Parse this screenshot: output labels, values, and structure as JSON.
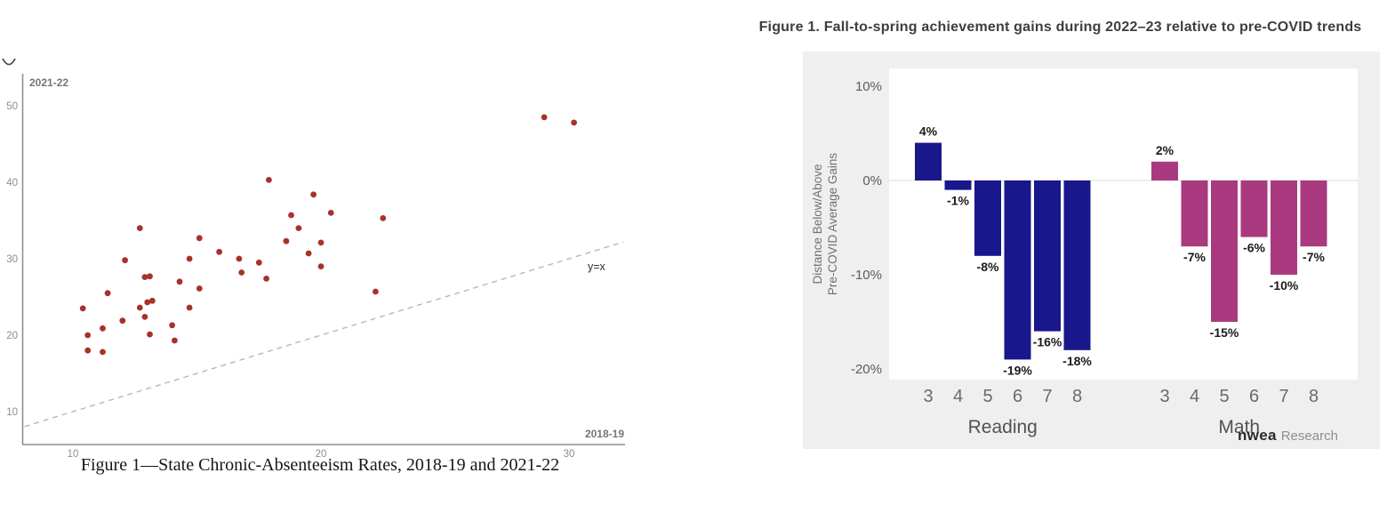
{
  "left_figure": {
    "caption": "Figure 1—State Chronic-Absenteeism Rates, 2018-19 and 2021-22"
  },
  "right_figure": {
    "title": "Figure 1. Fall-to-spring achievement gains during 2022–23 relative to pre-COVID trends",
    "logo_brand": "nwea",
    "logo_suffix": "Research"
  },
  "chart_data": [
    {
      "type": "scatter",
      "title": "Figure 1—State Chronic-Absenteeism Rates, 2018-19 and 2021-22",
      "xlabel": "2018-19",
      "ylabel": "2021-22",
      "x_ticks": [
        10,
        20,
        30
      ],
      "y_ticks": [
        10,
        20,
        30,
        40,
        50
      ],
      "xlim": [
        8,
        32.5
      ],
      "ylim": [
        7.5,
        53
      ],
      "grid": false,
      "legend": "none",
      "point_color": "#a83229",
      "reference_line": {
        "label": "y=x",
        "x1": 8.05,
        "y1": 8.05,
        "x2": 32.2,
        "y2": 32.2,
        "style": "dashed"
      },
      "points": [
        [
          10.4,
          23.5
        ],
        [
          10.6,
          20.0
        ],
        [
          10.6,
          18.0
        ],
        [
          11.2,
          20.9
        ],
        [
          11.2,
          17.8
        ],
        [
          11.4,
          25.5
        ],
        [
          12.0,
          21.9
        ],
        [
          12.1,
          29.8
        ],
        [
          12.7,
          34.0
        ],
        [
          12.7,
          23.6
        ],
        [
          12.9,
          27.6
        ],
        [
          12.9,
          22.4
        ],
        [
          13.0,
          24.3
        ],
        [
          13.1,
          27.7
        ],
        [
          13.1,
          20.1
        ],
        [
          13.2,
          24.5
        ],
        [
          14.0,
          21.3
        ],
        [
          14.1,
          19.3
        ],
        [
          14.3,
          27.0
        ],
        [
          14.7,
          30.0
        ],
        [
          14.7,
          23.6
        ],
        [
          15.1,
          32.7
        ],
        [
          15.1,
          26.1
        ],
        [
          15.9,
          30.9
        ],
        [
          16.7,
          30.0
        ],
        [
          16.8,
          28.2
        ],
        [
          17.5,
          29.5
        ],
        [
          17.8,
          27.4
        ],
        [
          17.9,
          40.3
        ],
        [
          18.6,
          32.3
        ],
        [
          18.8,
          35.7
        ],
        [
          19.1,
          34.0
        ],
        [
          19.5,
          30.7
        ],
        [
          19.7,
          38.4
        ],
        [
          20.0,
          32.1
        ],
        [
          20.0,
          29.0
        ],
        [
          20.4,
          36.0
        ],
        [
          22.2,
          25.7
        ],
        [
          22.5,
          35.3
        ],
        [
          29.0,
          48.5
        ],
        [
          30.2,
          47.8
        ]
      ]
    },
    {
      "type": "bar",
      "title": "Figure 1. Fall-to-spring achievement gains during 2022–23 relative to pre-COVID trends",
      "ylabel_lines": [
        "Distance Below/Above",
        "Pre-COVID Average Gains"
      ],
      "categories": [
        "3",
        "4",
        "5",
        "6",
        "7",
        "8"
      ],
      "series": [
        {
          "name": "Reading",
          "color": "#18178b",
          "values": [
            4,
            -1,
            -8,
            -19,
            -16,
            -18
          ],
          "labels": [
            "4%",
            "-1%",
            "-8%",
            "-19%",
            "-16%",
            "-18%"
          ]
        },
        {
          "name": "Math",
          "color": "#aa3a7f",
          "values": [
            2,
            -7,
            -15,
            -6,
            -10,
            -7
          ],
          "labels": [
            "2%",
            "-7%",
            "-15%",
            "-6%",
            "-10%",
            "-7%"
          ]
        }
      ],
      "y_ticks": [
        {
          "value": 10,
          "label": "10%"
        },
        {
          "value": 0,
          "label": "0%"
        },
        {
          "value": -10,
          "label": "-10%"
        },
        {
          "value": -20,
          "label": "-20%"
        }
      ],
      "ylim": [
        -21.5,
        12.2
      ],
      "grid": "zero-line-only",
      "legend": "none",
      "panel_color": "#efefef",
      "source_logo": "nwea Research"
    }
  ]
}
